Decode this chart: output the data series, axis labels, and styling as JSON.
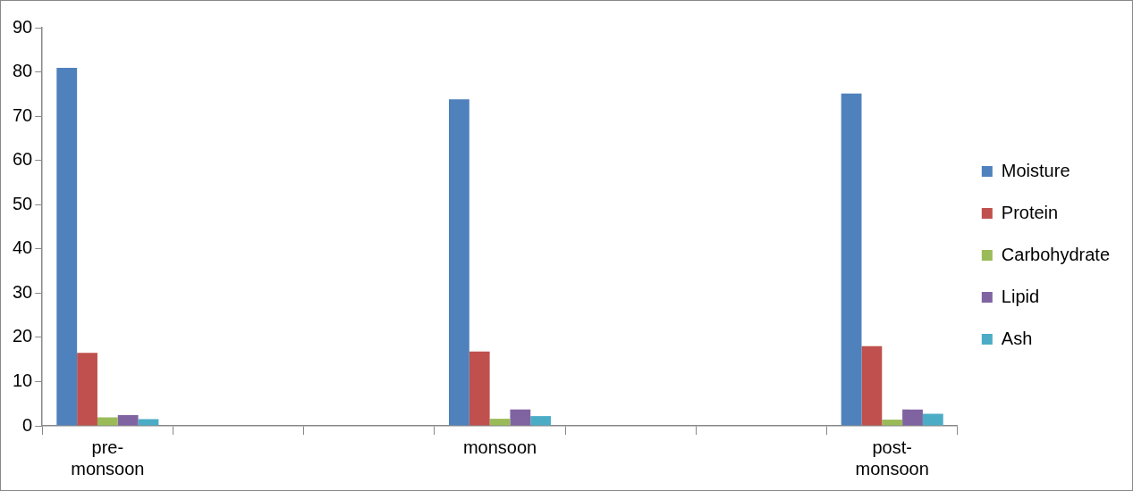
{
  "chart_data": {
    "type": "bar",
    "categories": [
      "pre-monsoon",
      null,
      null,
      "monsoon",
      null,
      null,
      "post-monsoon"
    ],
    "series": [
      {
        "name": "Moisture",
        "color": "#4f81bd",
        "values": [
          80.9,
          null,
          null,
          73.8,
          null,
          null,
          75.1
        ]
      },
      {
        "name": "Protein",
        "color": "#c0504d",
        "values": [
          16.5,
          null,
          null,
          16.8,
          null,
          null,
          18.0
        ]
      },
      {
        "name": "Carbohydrate",
        "color": "#9bbb59",
        "values": [
          1.9,
          null,
          null,
          1.6,
          null,
          null,
          1.4
        ]
      },
      {
        "name": "Lipid",
        "color": "#8064a2",
        "values": [
          2.4,
          null,
          null,
          3.7,
          null,
          null,
          3.7
        ]
      },
      {
        "name": "Ash",
        "color": "#4bacc6",
        "values": [
          1.5,
          null,
          null,
          2.2,
          null,
          null,
          2.7
        ]
      }
    ],
    "ylim": [
      0,
      90
    ],
    "yticks": [
      0,
      10,
      20,
      30,
      40,
      50,
      60,
      70,
      80,
      90
    ],
    "grid": false,
    "legend": "right"
  }
}
